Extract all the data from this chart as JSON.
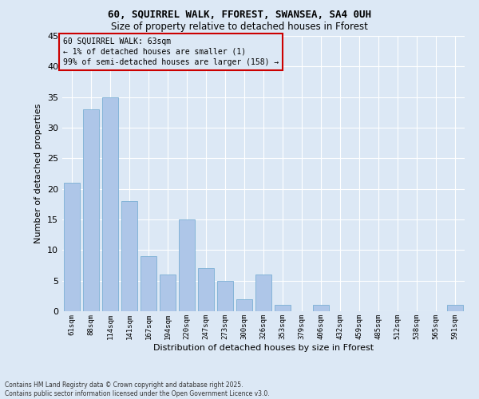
{
  "title1": "60, SQUIRREL WALK, FFOREST, SWANSEA, SA4 0UH",
  "title2": "Size of property relative to detached houses in Fforest",
  "xlabel": "Distribution of detached houses by size in Fforest",
  "ylabel": "Number of detached properties",
  "categories": [
    "61sqm",
    "88sqm",
    "114sqm",
    "141sqm",
    "167sqm",
    "194sqm",
    "220sqm",
    "247sqm",
    "273sqm",
    "300sqm",
    "326sqm",
    "353sqm",
    "379sqm",
    "406sqm",
    "432sqm",
    "459sqm",
    "485sqm",
    "512sqm",
    "538sqm",
    "565sqm",
    "591sqm"
  ],
  "values": [
    21,
    33,
    35,
    18,
    9,
    6,
    15,
    7,
    5,
    2,
    6,
    1,
    0,
    1,
    0,
    0,
    0,
    0,
    0,
    0,
    1
  ],
  "bar_color": "#aec6e8",
  "bar_edgecolor": "#7bafd4",
  "annotation_text": "60 SQUIRREL WALK: 63sqm\n← 1% of detached houses are smaller (1)\n99% of semi-detached houses are larger (158) →",
  "annotation_box_color": "#cc0000",
  "ylim": [
    0,
    45
  ],
  "yticks": [
    0,
    5,
    10,
    15,
    20,
    25,
    30,
    35,
    40,
    45
  ],
  "bg_color": "#dce8f5",
  "grid_color": "#ffffff",
  "footer1": "Contains HM Land Registry data © Crown copyright and database right 2025.",
  "footer2": "Contains public sector information licensed under the Open Government Licence v3.0."
}
